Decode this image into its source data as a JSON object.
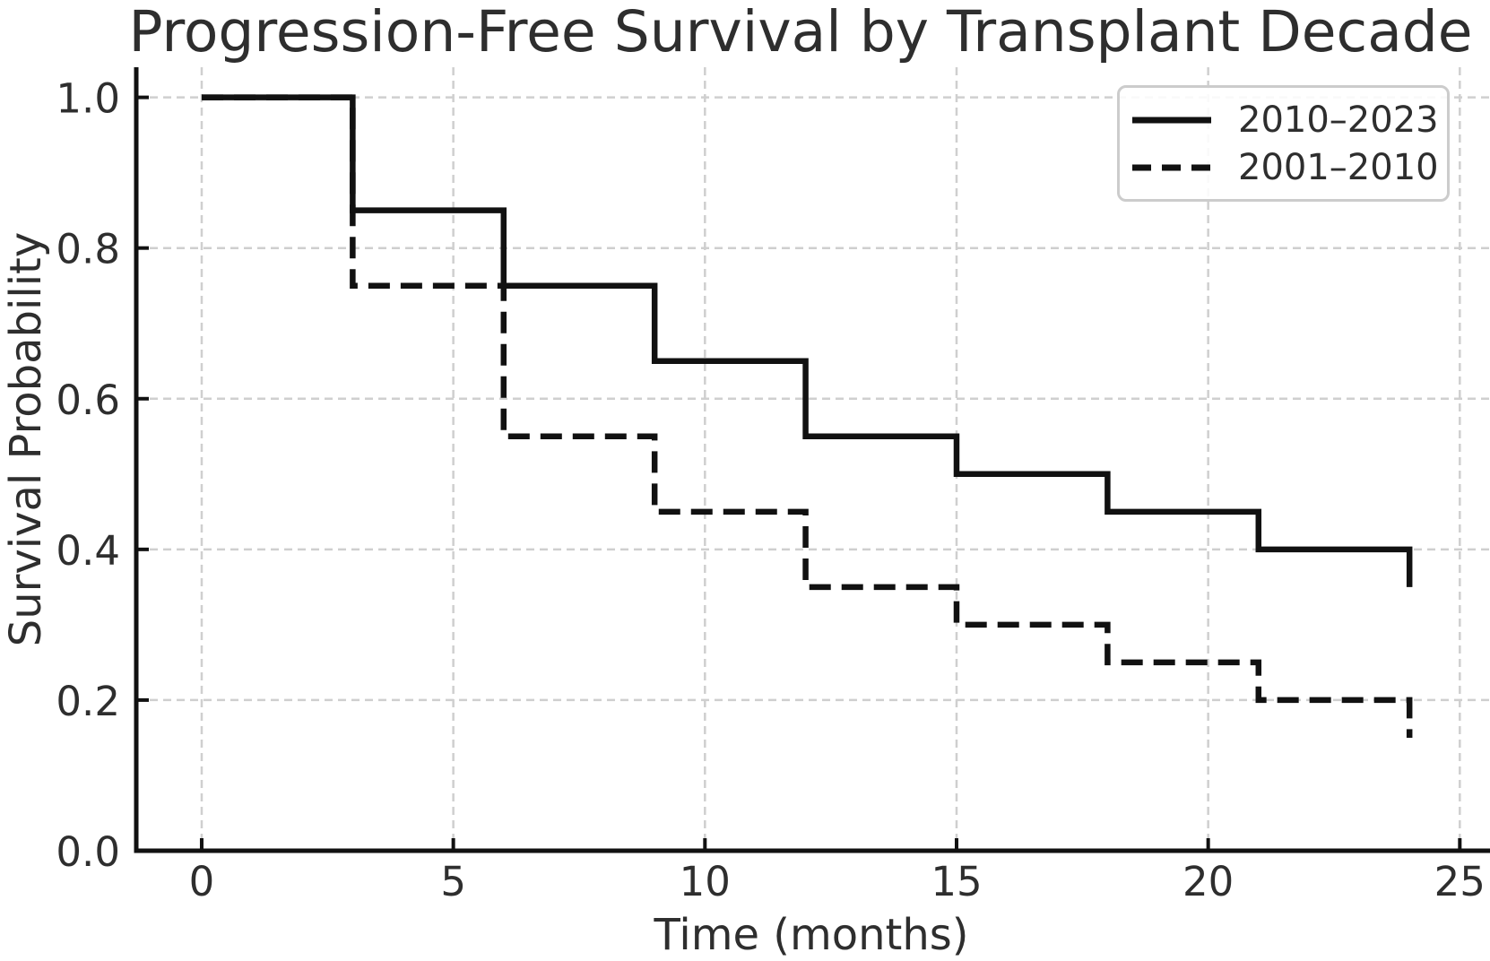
{
  "chart_data": {
    "type": "line",
    "subtype": "step-post",
    "title": "Progression-Free Survival by Transplant Decade",
    "xlabel": "Time (months)",
    "ylabel": "Survival Probability",
    "x_ticks": [
      0,
      5,
      10,
      15,
      20,
      25
    ],
    "y_ticks": [
      0.0,
      0.2,
      0.4,
      0.6,
      0.8,
      1.0
    ],
    "xlim": [
      -1.3,
      25.6
    ],
    "ylim": [
      0,
      1.04
    ],
    "grid": true,
    "legend_position": "upper right",
    "step_times": [
      0,
      3,
      6,
      9,
      12,
      15,
      18,
      21,
      24
    ],
    "series": [
      {
        "name": "2010–2023",
        "style": "solid",
        "color": "#111111",
        "values": [
          1.0,
          0.85,
          0.75,
          0.65,
          0.55,
          0.5,
          0.45,
          0.4,
          0.35
        ]
      },
      {
        "name": "2001–2010",
        "style": "dashed",
        "color": "#111111",
        "values": [
          1.0,
          0.75,
          0.55,
          0.45,
          0.35,
          0.3,
          0.25,
          0.2,
          0.15
        ]
      }
    ],
    "colors": {
      "line": "#111111",
      "grid": "#cfcfcf",
      "text": "#2e2e2e",
      "legend_border": "#cccccc",
      "background": "#ffffff"
    }
  }
}
